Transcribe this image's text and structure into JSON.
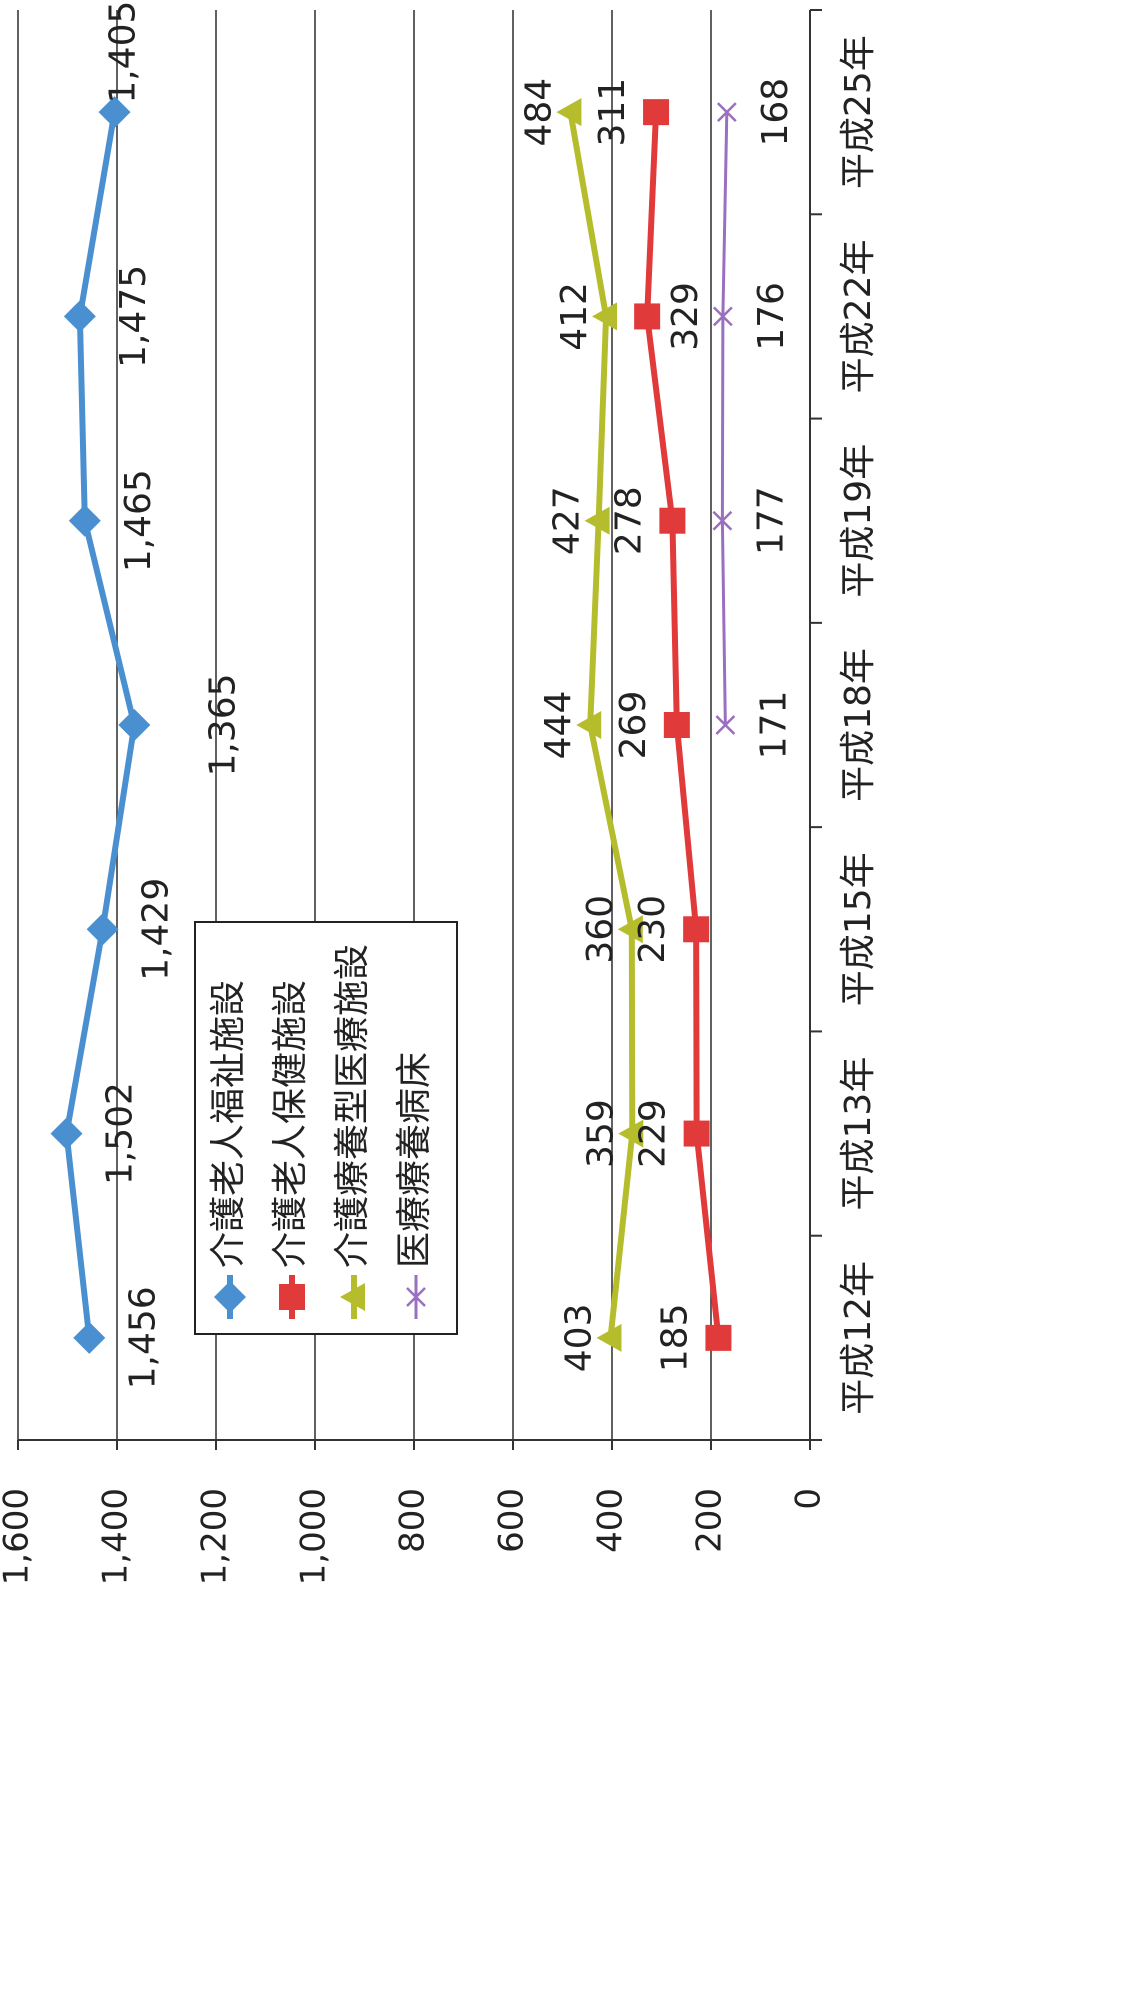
{
  "chart_data": {
    "type": "line",
    "title": "",
    "xlabel": "",
    "ylabel": "",
    "categories": [
      "平成12年",
      "平成13年",
      "平成15年",
      "平成18年",
      "平成19年",
      "平成22年",
      "平成25年"
    ],
    "ylim": [
      0,
      1600
    ],
    "yticks": [
      "0",
      "200",
      "400",
      "600",
      "800",
      "1,000",
      "1,200",
      "1,400",
      "1,600"
    ],
    "grid": true,
    "legend_position": "left",
    "orientation": "rotated-90-clockwise",
    "series": [
      {
        "name": "介護老人福祉施設",
        "color": "#4a90d0",
        "marker": "diamond",
        "values": [
          1456,
          1502,
          1429,
          1365,
          1465,
          1475,
          1405
        ],
        "labels": [
          "1,456",
          "1,502",
          "1,429",
          "1,365",
          "1,465",
          "1,475",
          "1,405"
        ]
      },
      {
        "name": "介護老人保健施設",
        "color": "#e03a3a",
        "marker": "square",
        "values": [
          185,
          229,
          230,
          269,
          278,
          329,
          311
        ],
        "labels": [
          "185",
          "229",
          "230",
          "269",
          "278",
          "329",
          "311"
        ]
      },
      {
        "name": "介護療養型医療施設",
        "color": "#b6bd2c",
        "marker": "triangle",
        "values": [
          403,
          359,
          360,
          444,
          427,
          412,
          484
        ],
        "labels": [
          "403",
          "359",
          "360",
          "444",
          "427",
          "412",
          "484"
        ]
      },
      {
        "name": "医療療養病床",
        "color": "#9a6fc0",
        "marker": "x",
        "values": [
          null,
          null,
          null,
          171,
          177,
          176,
          168
        ],
        "labels": [
          null,
          null,
          null,
          "171",
          "177",
          "176",
          "168"
        ]
      }
    ]
  }
}
